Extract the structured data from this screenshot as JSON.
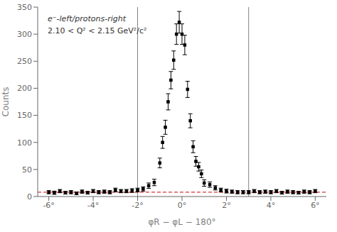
{
  "chart_data": {
    "type": "scatter",
    "annotations": [
      "e⁻-left/protons-right",
      "2.10 < Q² < 2.15 GeV²/c²"
    ],
    "x_label": "φR − φL − 180°",
    "y_label": "Counts",
    "xlim": [
      -6.5,
      6.5
    ],
    "ylim": [
      0,
      350
    ],
    "xticks": [
      {
        "value": -6,
        "label": "-6°"
      },
      {
        "value": -4,
        "label": "-4°"
      },
      {
        "value": -2,
        "label": "-2°"
      },
      {
        "value": 0,
        "label": "0°"
      },
      {
        "value": 2,
        "label": "2°"
      },
      {
        "value": 4,
        "label": "4°"
      },
      {
        "value": 6,
        "label": "6°"
      }
    ],
    "yticks": [
      0,
      50,
      100,
      150,
      200,
      250,
      300,
      350
    ],
    "grid": false,
    "marker": "square",
    "color": "black",
    "x": [
      -6.0,
      -5.75,
      -5.5,
      -5.25,
      -5.0,
      -4.75,
      -4.5,
      -4.25,
      -4.0,
      -3.75,
      -3.5,
      -3.25,
      -3.0,
      -2.75,
      -2.5,
      -2.25,
      -2.0,
      -1.75,
      -1.5,
      -1.25,
      -1.0,
      -0.875,
      -0.75,
      -0.625,
      -0.5,
      -0.375,
      -0.25,
      -0.125,
      0.0,
      0.125,
      0.25,
      0.375,
      0.5,
      0.625,
      0.75,
      0.875,
      1.0,
      1.25,
      1.5,
      1.75,
      2.0,
      2.25,
      2.5,
      2.75,
      3.0,
      3.25,
      3.5,
      3.75,
      4.0,
      4.25,
      4.5,
      4.75,
      5.0,
      5.25,
      5.5,
      5.75,
      6.0
    ],
    "values": [
      8,
      7,
      10,
      7,
      8,
      6,
      9,
      7,
      10,
      8,
      9,
      8,
      12,
      10,
      10,
      11,
      12,
      14,
      20,
      26,
      62,
      100,
      128,
      175,
      215,
      252,
      300,
      322,
      300,
      280,
      198,
      140,
      92,
      65,
      55,
      42,
      25,
      22,
      16,
      12,
      10,
      9,
      8,
      8,
      8,
      10,
      8,
      9,
      8,
      10,
      7,
      9,
      8,
      7,
      9,
      8,
      10
    ],
    "errors": [
      3,
      3,
      3,
      2.5,
      3,
      2.5,
      3,
      2.5,
      3,
      3,
      3,
      3,
      3.5,
      3,
      3,
      3.5,
      3.5,
      4,
      5,
      6,
      9,
      11,
      13,
      15,
      16,
      17,
      19,
      20,
      19,
      18,
      15,
      13,
      11,
      9,
      8,
      7,
      6,
      5,
      4,
      3.5,
      3.5,
      3,
      3,
      3,
      3,
      3,
      3,
      3,
      3,
      3,
      2.5,
      3,
      3,
      2.5,
      3,
      3,
      3
    ],
    "vlines": {
      "values": [
        -2.0,
        3.0
      ],
      "color": "#808080"
    },
    "hline": {
      "value": 8.0,
      "color": "#cc0000",
      "line_style": "dashed"
    }
  }
}
